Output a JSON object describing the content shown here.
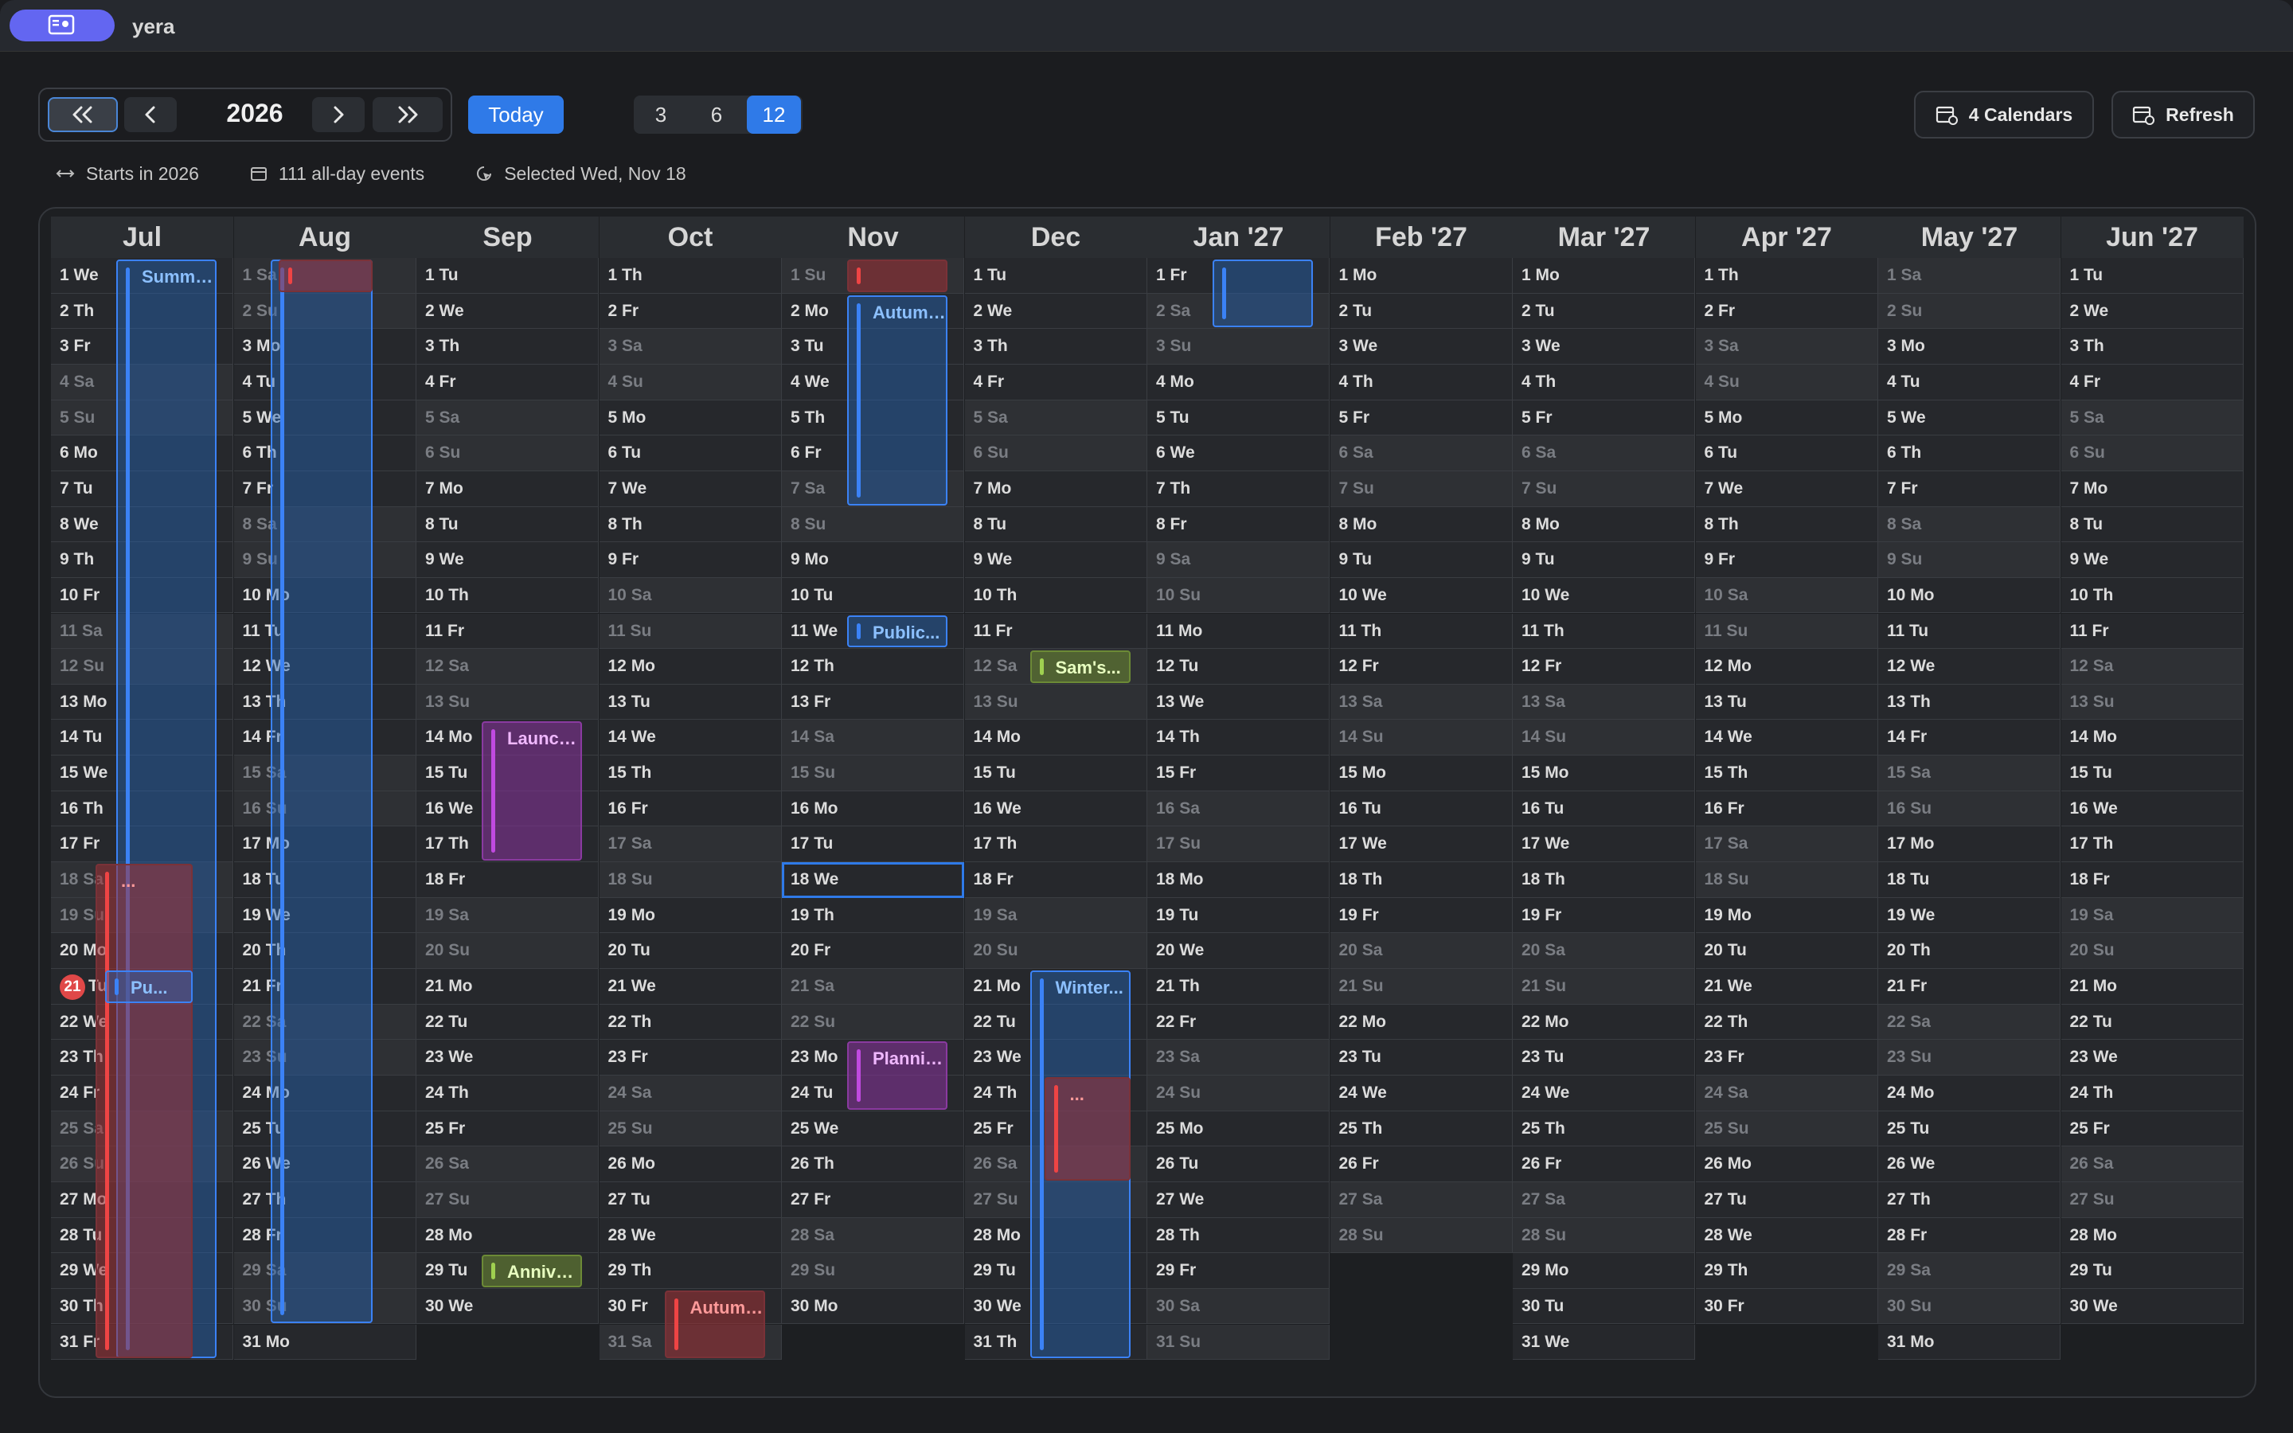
{
  "app": {
    "name": "yera"
  },
  "toolbar": {
    "year": "2026",
    "today_label": "Today",
    "segments": [
      "3",
      "6",
      "12"
    ],
    "active_segment": "12",
    "calendars_label": "4 Calendars",
    "refresh_label": "Refresh"
  },
  "info": {
    "starts": "Starts in 2026",
    "all_day": "111 all-day events",
    "selected": "Selected Wed, Nov 18"
  },
  "calendar": {
    "months": [
      {
        "label": "Jul",
        "days": 31,
        "first_dow": 3
      },
      {
        "label": "Aug",
        "days": 31,
        "first_dow": 6
      },
      {
        "label": "Sep",
        "days": 30,
        "first_dow": 2
      },
      {
        "label": "Oct",
        "days": 31,
        "first_dow": 4
      },
      {
        "label": "Nov",
        "days": 30,
        "first_dow": 0
      },
      {
        "label": "Dec",
        "days": 31,
        "first_dow": 2
      },
      {
        "label": "Jan '27",
        "days": 31,
        "first_dow": 5
      },
      {
        "label": "Feb '27",
        "days": 28,
        "first_dow": 1
      },
      {
        "label": "Mar '27",
        "days": 31,
        "first_dow": 1
      },
      {
        "label": "Apr '27",
        "days": 30,
        "first_dow": 4
      },
      {
        "label": "May '27",
        "days": 31,
        "first_dow": 6
      },
      {
        "label": "Jun '27",
        "days": 30,
        "first_dow": 2
      }
    ],
    "weekday_abbr": [
      "Su",
      "Mo",
      "Tu",
      "We",
      "Th",
      "Fr",
      "Sa"
    ],
    "today": {
      "month": 0,
      "day": 21
    },
    "selected": {
      "month": 4,
      "day": 18
    },
    "events": [
      {
        "title": "Summe...",
        "color": "blue",
        "month": 0,
        "start": 1,
        "end": 31,
        "lane": 0,
        "lanes": 1,
        "offset": 1
      },
      {
        "title": "",
        "color": "blue",
        "month": 1,
        "start": 1,
        "end": 30,
        "lane": 0,
        "lanes": 1,
        "offset": 0.45
      },
      {
        "title": "",
        "color": "red",
        "month": 1,
        "start": 1,
        "end": 1,
        "lane": 1,
        "lanes": 2,
        "offset": 0.45
      },
      {
        "title": "...",
        "color": "red",
        "month": 0,
        "start": 18,
        "end": 31,
        "lane": 1,
        "lanes": 2,
        "offset": 1
      },
      {
        "title": "Pu...",
        "color": "blue",
        "month": 0,
        "start": 21,
        "end": 21,
        "lane": 2,
        "lanes": 2,
        "offset": 1
      },
      {
        "title": "Launch...",
        "color": "purple",
        "month": 2,
        "start": 14,
        "end": 17,
        "lane": 0,
        "lanes": 1,
        "offset": 1
      },
      {
        "title": "Anniver...",
        "color": "green",
        "month": 2,
        "start": 29,
        "end": 29,
        "lane": 0,
        "lanes": 1,
        "offset": 1
      },
      {
        "title": "Autumn...",
        "color": "red",
        "month": 3,
        "start": 30,
        "end": 31,
        "lane": 0,
        "lanes": 1,
        "offset": 1
      },
      {
        "title": "",
        "color": "red",
        "month": 4,
        "start": 1,
        "end": 1,
        "lane": 0,
        "lanes": 1,
        "offset": 1
      },
      {
        "title": "Autumn...",
        "color": "blue",
        "month": 4,
        "start": 2,
        "end": 7,
        "lane": 0,
        "lanes": 1,
        "offset": 1
      },
      {
        "title": "Public...",
        "color": "blue",
        "month": 4,
        "start": 11,
        "end": 11,
        "lane": 0,
        "lanes": 1,
        "offset": 1
      },
      {
        "title": "Plannin...",
        "color": "purple",
        "month": 4,
        "start": 23,
        "end": 24,
        "lane": 0,
        "lanes": 1,
        "offset": 1
      },
      {
        "title": "Sam's...",
        "color": "green",
        "month": 5,
        "start": 12,
        "end": 12,
        "lane": 0,
        "lanes": 1,
        "offset": 1
      },
      {
        "title": "Winter...",
        "color": "blue",
        "month": 5,
        "start": 21,
        "end": 31,
        "lane": 0,
        "lanes": 1,
        "offset": 1
      },
      {
        "title": "...",
        "color": "red",
        "month": 5,
        "start": 24,
        "end": 26,
        "lane": 1,
        "lanes": 2,
        "offset": 1
      },
      {
        "title": "",
        "color": "blue",
        "month": 6,
        "start": 1,
        "end": 2,
        "lane": 0,
        "lanes": 1,
        "offset": 1
      }
    ]
  }
}
